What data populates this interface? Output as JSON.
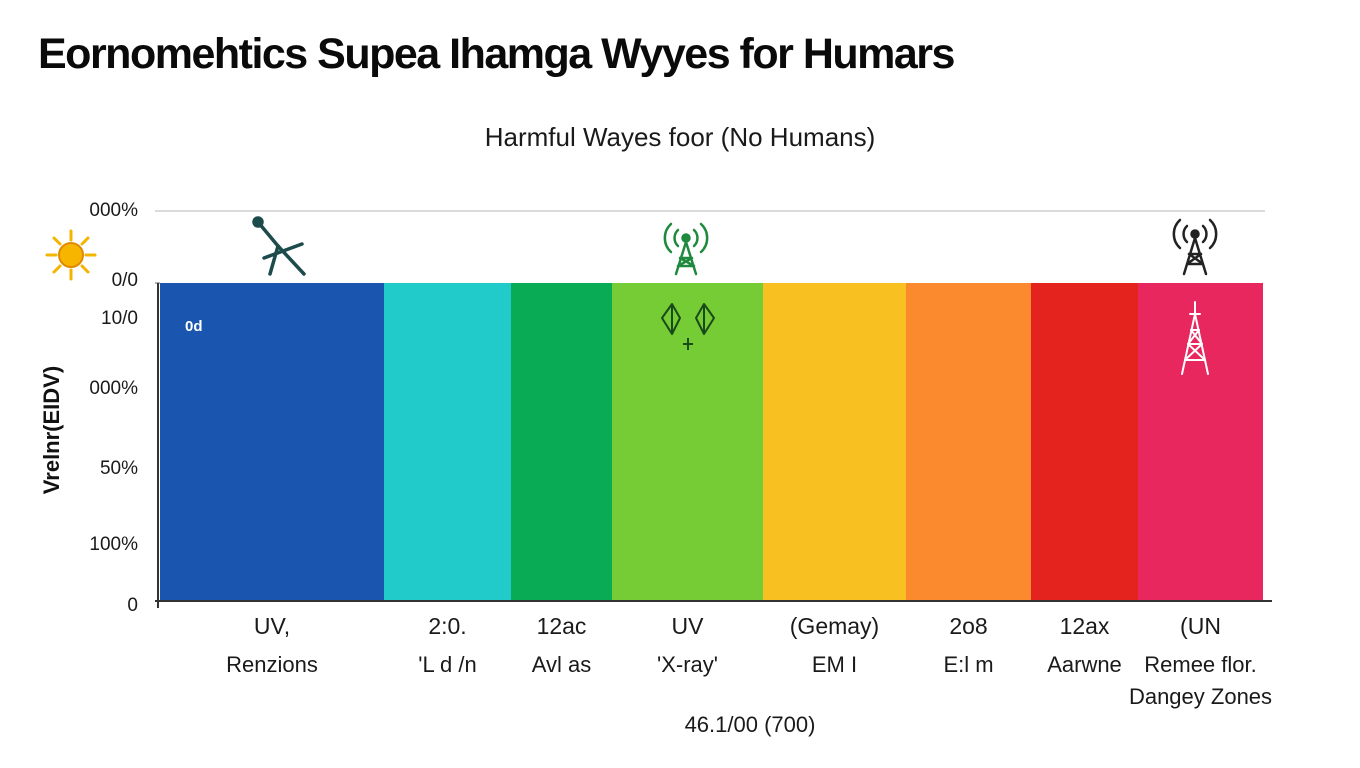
{
  "title": "Eornomehtics Supea Ihamga Wyyes for Humars",
  "subtitle": "Harmful Wayes foor (No Humans)",
  "footnote": "46.1/00 (700)",
  "chart_data": {
    "type": "bar",
    "ylabel": "Vrelnr(EIDV)",
    "y_tick_labels": [
      "0",
      "100%",
      "50%",
      "000%",
      "10/0",
      "0/0",
      "000%"
    ],
    "ylim": [
      0,
      100
    ],
    "grid": "top-line",
    "categories": [
      {
        "line1": "UV,",
        "line2": "Renzions",
        "line3": ""
      },
      {
        "line1": "2:0.",
        "line2": "'L d /n",
        "line3": ""
      },
      {
        "line1": "12ac",
        "line2": "Avl as",
        "line3": ""
      },
      {
        "line1": "UV",
        "line2": "'X-ray'",
        "line3": ""
      },
      {
        "line1": "(Gemay)",
        "line2": "EM I",
        "line3": ""
      },
      {
        "line1": "2o8",
        "line2": "E:l m",
        "line3": ""
      },
      {
        "line1": "12ax",
        "line2": "Aarwne",
        "line3": ""
      },
      {
        "line1": "(UN",
        "line2": "Remee flor.",
        "line3": "Dangey Zones"
      }
    ],
    "values": [
      100,
      100,
      100,
      100,
      100,
      100,
      100,
      100
    ],
    "colors": [
      "#1a56b0",
      "#21cbc9",
      "#0aab55",
      "#75cc34",
      "#f8c020",
      "#fb8a2e",
      "#e4231f",
      "#e8275e"
    ],
    "highlight_label_color": "#3d9a1f",
    "bar_note": "0d",
    "icons": [
      "sun-icon",
      "satellite-dish-icon",
      "radio-tower-icon",
      "radio-tower-icon",
      "crystal-icon",
      "pylon-icon"
    ]
  }
}
